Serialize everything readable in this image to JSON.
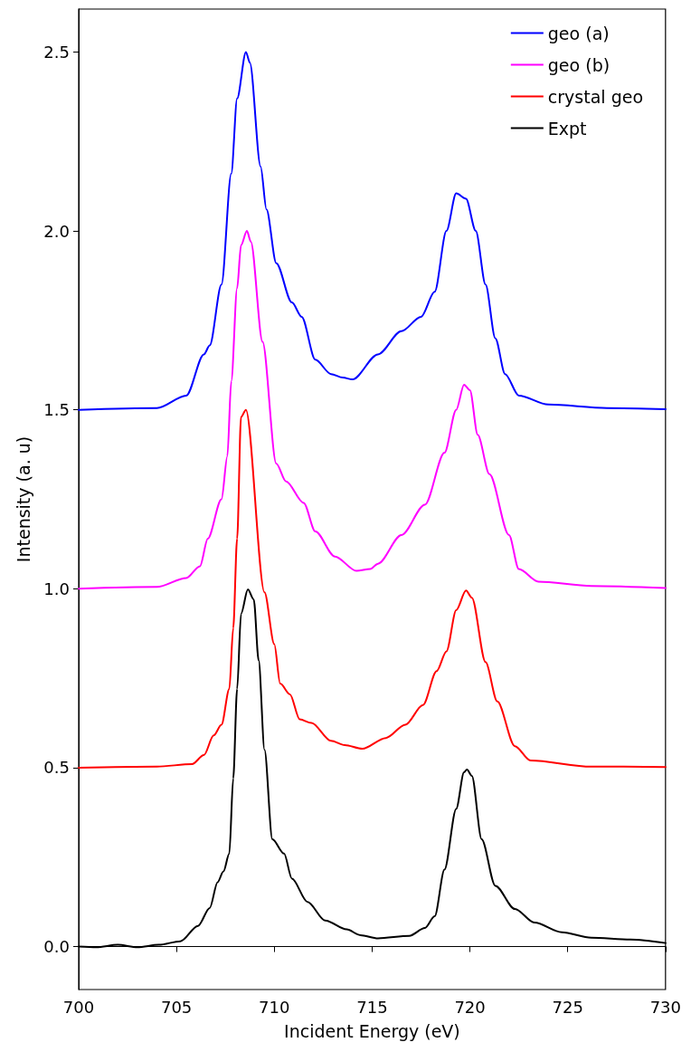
{
  "chart_data": {
    "type": "line",
    "xlabel": "Incident Energy (eV)",
    "ylabel": "Intensity (a. u)",
    "xlim": [
      700,
      730
    ],
    "xticks": [
      700,
      705,
      710,
      715,
      720,
      725,
      730
    ],
    "ylim": [
      -0.12,
      2.62
    ],
    "yticks": [
      {
        "value": 0,
        "label": "0.0"
      },
      {
        "value": 0.5,
        "label": "0.5"
      },
      {
        "value": 1,
        "label": "1.0"
      },
      {
        "value": 1.5,
        "label": "1.5"
      },
      {
        "value": 2,
        "label": "2.0"
      },
      {
        "value": 2.5,
        "label": "2.5"
      }
    ],
    "legend": "top right",
    "marker": "none",
    "line_style": "solid",
    "series": [
      {
        "name": "geo (a)",
        "color": "#0000ff",
        "x": [
          700,
          704,
          705.5,
          706.4,
          706.7,
          707.3,
          707.8,
          708.1,
          708.55,
          708.75,
          709.3,
          709.6,
          710.1,
          710.9,
          711.4,
          712.1,
          712.9,
          713.5,
          714,
          715.3,
          716.5,
          717.5,
          718.2,
          718.8,
          719.3,
          719.8,
          720.3,
          720.8,
          721.3,
          721.8,
          722.5,
          724,
          727,
          730
        ],
        "values": [
          1.5,
          1.505,
          1.54,
          1.655,
          1.68,
          1.85,
          2.16,
          2.37,
          2.5,
          2.47,
          2.18,
          2.06,
          1.91,
          1.8,
          1.76,
          1.64,
          1.6,
          1.59,
          1.585,
          1.655,
          1.72,
          1.76,
          1.83,
          2.0,
          2.105,
          2.09,
          2.0,
          1.85,
          1.7,
          1.6,
          1.54,
          1.515,
          1.505,
          1.502
        ]
      },
      {
        "name": "geo (b)",
        "color": "#ff00ff",
        "x": [
          700,
          704,
          705.5,
          706.2,
          706.6,
          707.3,
          707.6,
          707.8,
          708.1,
          708.3,
          708.6,
          708.8,
          709.4,
          710.1,
          710.6,
          711.5,
          712.1,
          713.1,
          714.2,
          714.9,
          715.3,
          716.5,
          717.7,
          718.7,
          719.3,
          719.7,
          720,
          720.4,
          721,
          722,
          722.5,
          723.5,
          726.2,
          730
        ],
        "values": [
          1.0,
          1.005,
          1.03,
          1.063,
          1.14,
          1.25,
          1.37,
          1.58,
          1.84,
          1.96,
          2.0,
          1.97,
          1.69,
          1.35,
          1.3,
          1.24,
          1.16,
          1.09,
          1.05,
          1.055,
          1.07,
          1.15,
          1.235,
          1.38,
          1.5,
          1.57,
          1.555,
          1.43,
          1.32,
          1.15,
          1.055,
          1.02,
          1.008,
          1.002
        ]
      },
      {
        "name": "crystal geo",
        "color": "#ff0000",
        "x": [
          700,
          704,
          705.8,
          706.4,
          706.9,
          707.3,
          707.7,
          707.9,
          708.1,
          708.3,
          708.55,
          709.5,
          710,
          710.3,
          710.8,
          711.3,
          711.9,
          712.9,
          713.6,
          714.5,
          715.7,
          716.7,
          717.6,
          718.3,
          718.8,
          719.3,
          719.8,
          720.1,
          720.8,
          721.4,
          722.3,
          723.1,
          726.2,
          730
        ],
        "values": [
          0.5,
          0.503,
          0.51,
          0.535,
          0.59,
          0.62,
          0.72,
          0.89,
          1.14,
          1.48,
          1.5,
          0.99,
          0.845,
          0.735,
          0.705,
          0.635,
          0.625,
          0.575,
          0.563,
          0.553,
          0.583,
          0.62,
          0.675,
          0.77,
          0.825,
          0.94,
          0.995,
          0.975,
          0.795,
          0.685,
          0.56,
          0.52,
          0.503,
          0.502
        ]
      },
      {
        "name": "Expt",
        "color": "#000000",
        "x": [
          700,
          700.9,
          702,
          703,
          704.1,
          705.2,
          706.1,
          706.7,
          707.1,
          707.4,
          707.7,
          707.9,
          708.1,
          708.3,
          708.65,
          708.95,
          709.2,
          709.5,
          709.9,
          710.5,
          710.9,
          711.7,
          712.6,
          713.7,
          714.4,
          715.3,
          716.9,
          717.7,
          718.2,
          718.7,
          719.3,
          719.7,
          719.85,
          720.1,
          720.6,
          721.3,
          722.3,
          723.3,
          724.7,
          726.2,
          728.2,
          730
        ],
        "values": [
          0.0,
          -0.002,
          0.005,
          -0.002,
          0.005,
          0.015,
          0.058,
          0.108,
          0.18,
          0.21,
          0.26,
          0.47,
          0.72,
          0.93,
          0.998,
          0.97,
          0.8,
          0.55,
          0.3,
          0.26,
          0.19,
          0.125,
          0.073,
          0.048,
          0.032,
          0.023,
          0.03,
          0.052,
          0.085,
          0.215,
          0.385,
          0.487,
          0.495,
          0.477,
          0.3,
          0.17,
          0.105,
          0.067,
          0.04,
          0.025,
          0.02,
          0.01
        ]
      }
    ]
  }
}
